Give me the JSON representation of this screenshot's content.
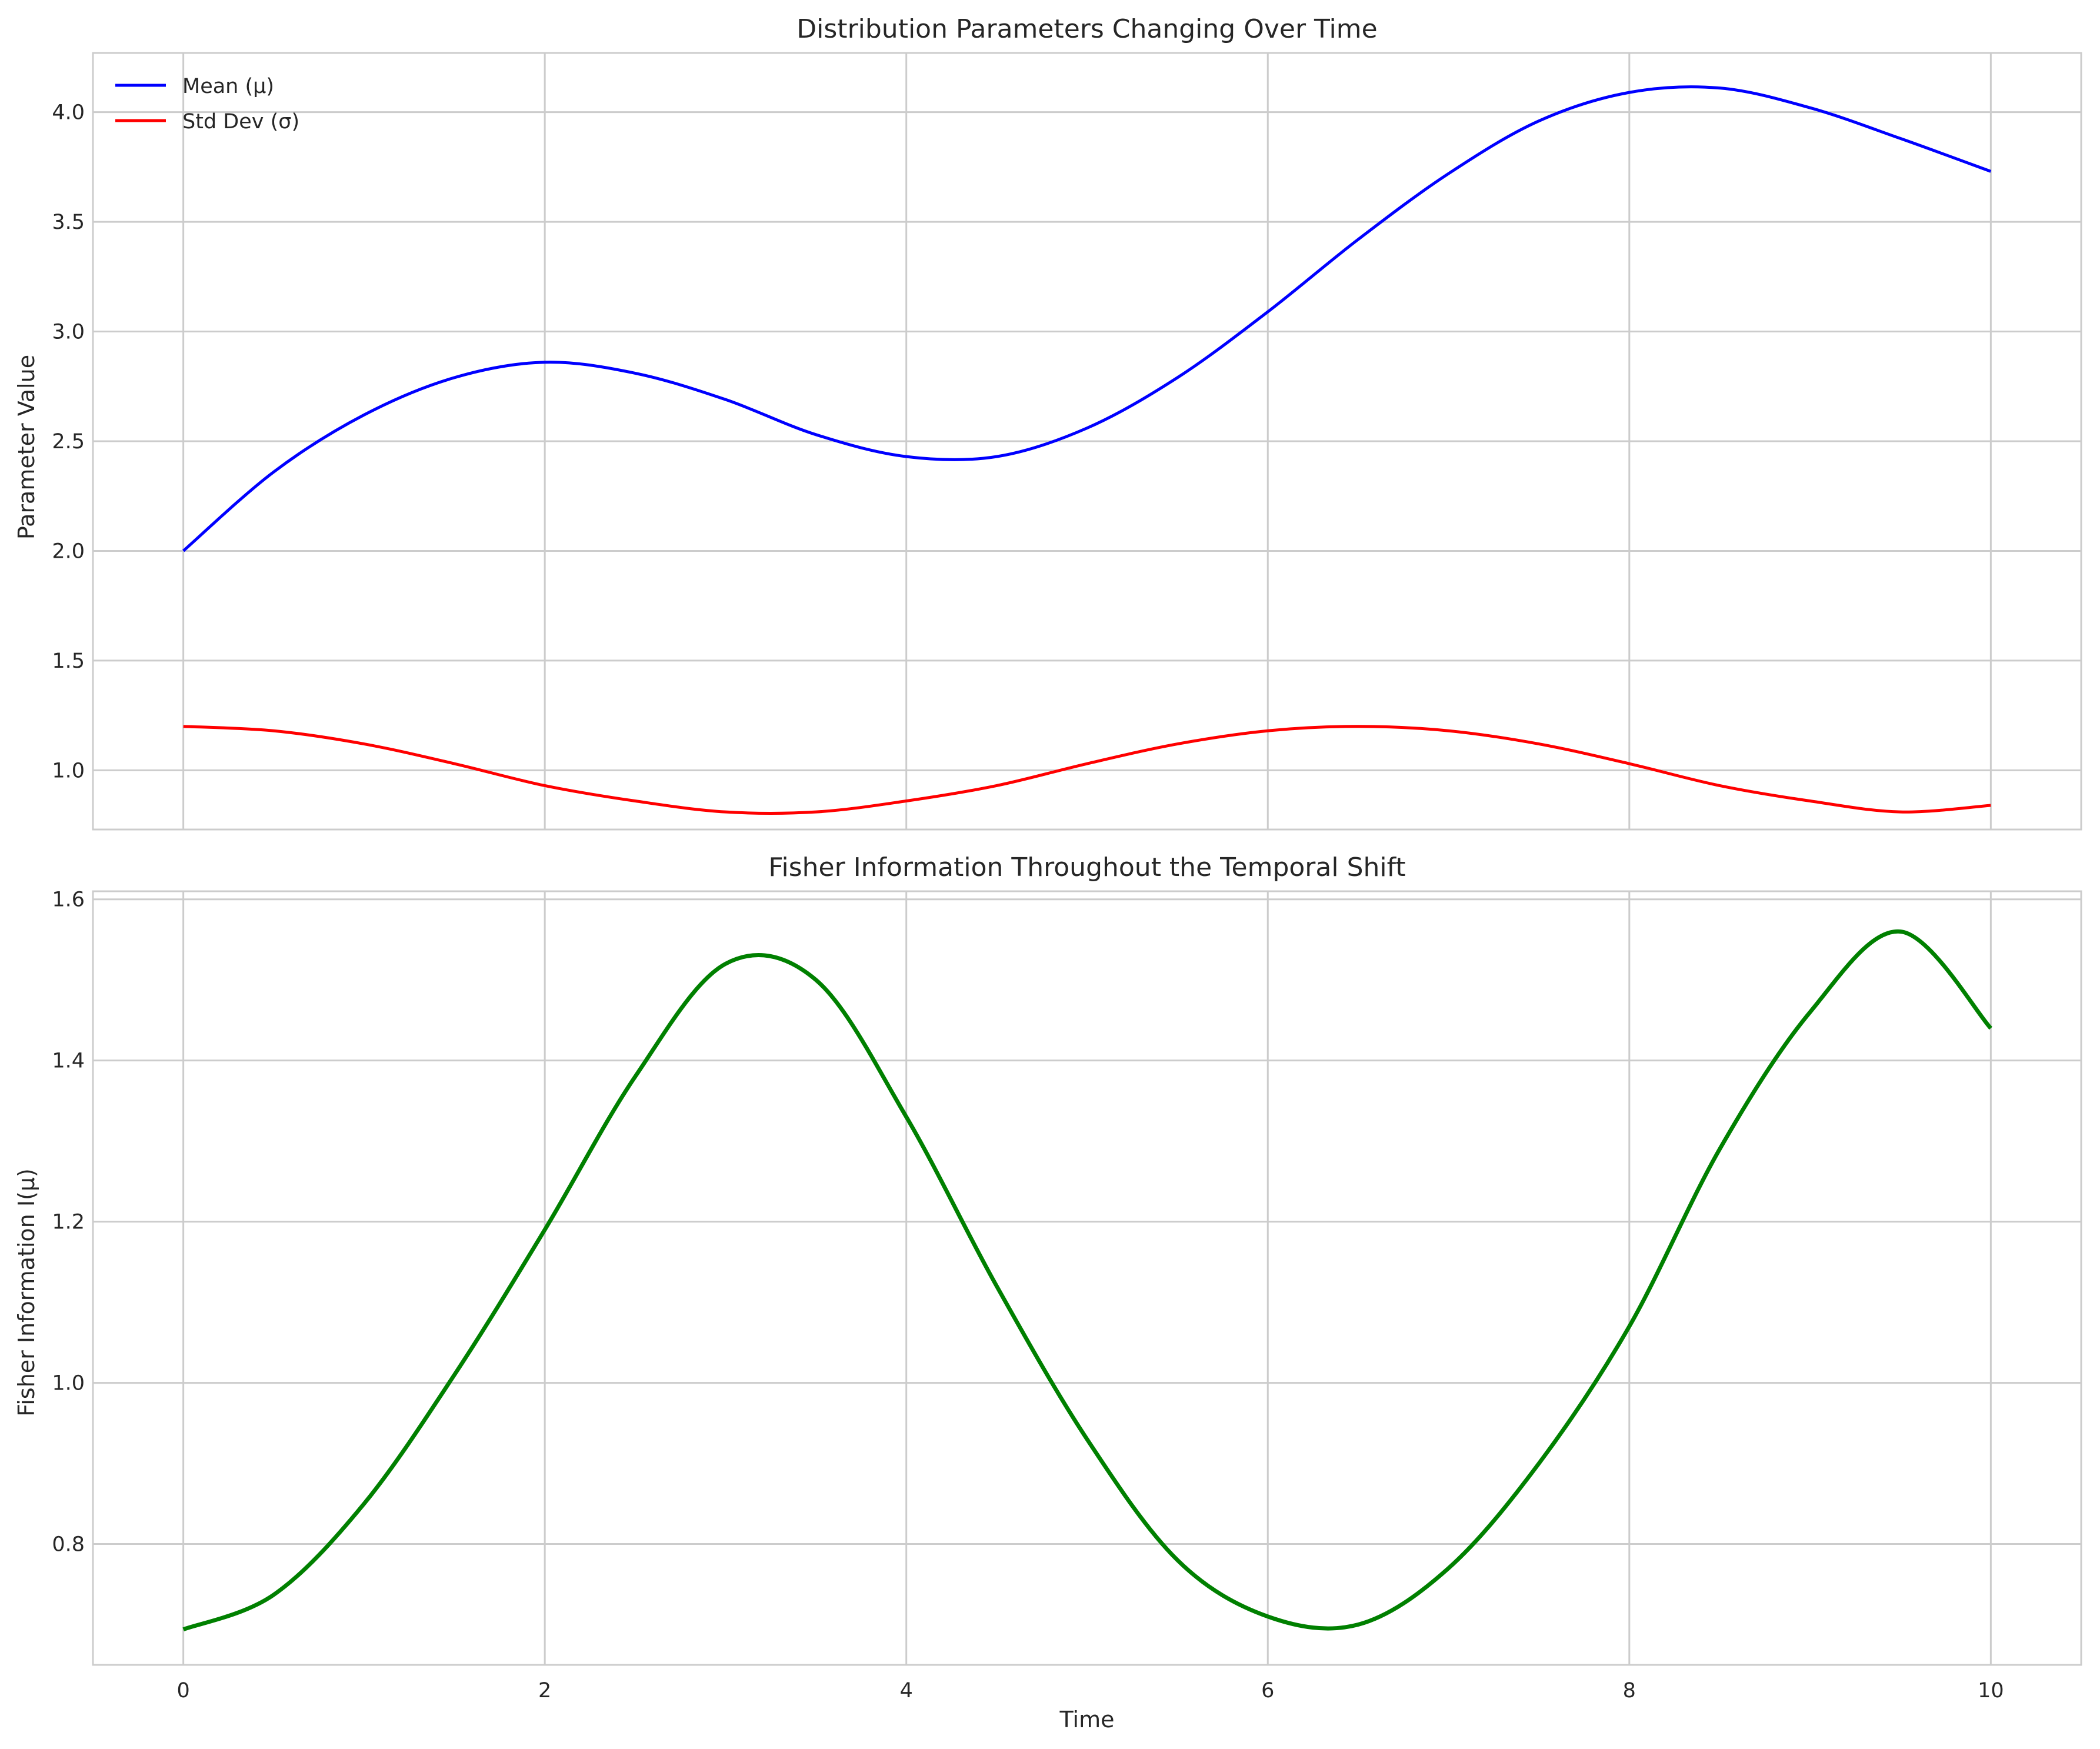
{
  "chart_data": [
    {
      "type": "line",
      "title": "Distribution Parameters Changing Over Time",
      "xlabel": "",
      "ylabel": "Parameter Value",
      "xlim": [
        -0.5,
        10.5
      ],
      "ylim": [
        0.73,
        4.27
      ],
      "xticks": [
        0,
        2,
        4,
        6,
        8,
        10
      ],
      "xtick_labels": [
        "",
        "",
        "",
        "",
        "",
        ""
      ],
      "yticks": [
        1.0,
        1.5,
        2.0,
        2.5,
        3.0,
        3.5,
        4.0
      ],
      "ytick_labels": [
        "1.0",
        "1.5",
        "2.0",
        "2.5",
        "3.0",
        "3.5",
        "4.0"
      ],
      "grid": true,
      "legend": "top-left",
      "series": [
        {
          "name": "Mean (μ)",
          "color": "#0000ff",
          "x": [
            0,
            0.5,
            1,
            1.5,
            2,
            2.5,
            3,
            3.5,
            4,
            4.5,
            5,
            5.5,
            6,
            6.5,
            7,
            7.5,
            8,
            8.5,
            9,
            9.5,
            10
          ],
          "y": [
            2.0,
            2.36,
            2.62,
            2.79,
            2.86,
            2.81,
            2.69,
            2.53,
            2.43,
            2.43,
            2.56,
            2.79,
            3.09,
            3.42,
            3.72,
            3.96,
            4.09,
            4.11,
            4.02,
            3.88,
            3.73
          ]
        },
        {
          "name": "Std Dev (σ)",
          "color": "#ff0000",
          "x": [
            0,
            0.5,
            1,
            1.5,
            2,
            2.5,
            3,
            3.5,
            4,
            4.5,
            5,
            5.5,
            6,
            6.5,
            7,
            7.5,
            8,
            8.5,
            9,
            9.5,
            10
          ],
          "y": [
            1.2,
            1.18,
            1.12,
            1.03,
            0.93,
            0.86,
            0.81,
            0.81,
            0.86,
            0.93,
            1.03,
            1.12,
            1.18,
            1.2,
            1.18,
            1.12,
            1.03,
            0.93,
            0.86,
            0.81,
            0.84
          ]
        }
      ]
    },
    {
      "type": "line",
      "title": "Fisher Information Throughout the Temporal Shift",
      "xlabel": "Time",
      "ylabel": "Fisher Information I(μ)",
      "xlim": [
        -0.5,
        10.5
      ],
      "ylim": [
        0.65,
        1.61
      ],
      "xticks": [
        0,
        2,
        4,
        6,
        8,
        10
      ],
      "xtick_labels": [
        "0",
        "2",
        "4",
        "6",
        "8",
        "10"
      ],
      "yticks": [
        0.8,
        1.0,
        1.2,
        1.4,
        1.6
      ],
      "ytick_labels": [
        "0.8",
        "1.0",
        "1.2",
        "1.4",
        "1.6"
      ],
      "grid": true,
      "series": [
        {
          "color": "#008000",
          "x": [
            0,
            0.5,
            1,
            1.5,
            2,
            2.5,
            3,
            3.5,
            4,
            4.5,
            5,
            5.5,
            6,
            6.5,
            7,
            7.5,
            8,
            8.5,
            9,
            9.5,
            10
          ],
          "y": [
            0.694,
            0.737,
            0.85,
            1.01,
            1.19,
            1.38,
            1.52,
            1.5,
            1.33,
            1.12,
            0.93,
            0.78,
            0.71,
            0.7,
            0.77,
            0.9,
            1.07,
            1.29,
            1.46,
            1.56,
            1.44
          ]
        }
      ]
    }
  ]
}
